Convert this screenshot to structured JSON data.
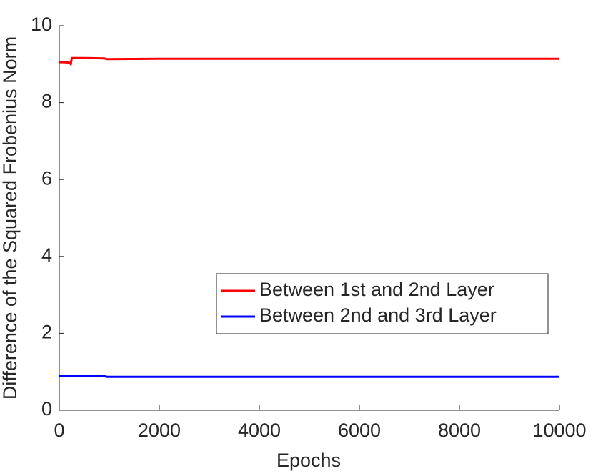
{
  "chart_data": {
    "type": "line",
    "xlabel": "Epochs",
    "ylabel": "Difference of the Squared Frobenius Norm",
    "x": [
      0,
      100,
      200,
      230,
      250,
      500,
      900,
      950,
      2000,
      4000,
      6000,
      8000,
      10000
    ],
    "series": [
      {
        "name": "Between 1st and 2nd Layer",
        "color": "#ff0000",
        "values": [
          9.05,
          9.05,
          9.04,
          9.0,
          9.16,
          9.16,
          9.15,
          9.13,
          9.14,
          9.14,
          9.14,
          9.14,
          9.14
        ]
      },
      {
        "name": "Between 2nd and 3rd Layer",
        "color": "#0000ff",
        "values": [
          0.89,
          0.89,
          0.89,
          0.89,
          0.89,
          0.89,
          0.89,
          0.87,
          0.87,
          0.87,
          0.87,
          0.87,
          0.87
        ]
      }
    ],
    "xlim": [
      0,
      10000
    ],
    "xticks": [
      0,
      2000,
      4000,
      6000,
      8000,
      10000
    ],
    "ylim": [
      0,
      10
    ],
    "yticks": [
      0,
      2,
      4,
      6,
      8,
      10
    ],
    "grid": false,
    "legend": "east"
  }
}
